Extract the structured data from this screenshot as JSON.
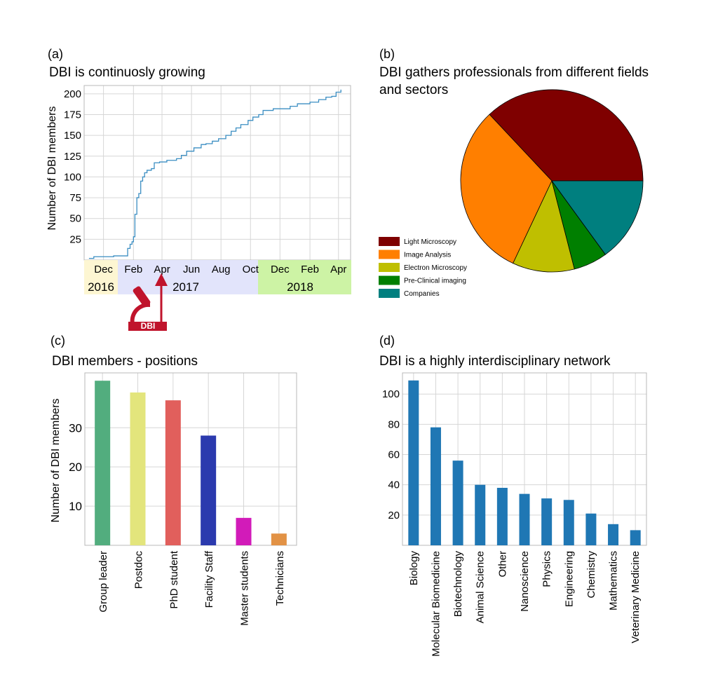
{
  "panel_a": {
    "label": "(a)",
    "title": "DBI is continuosly growing",
    "ylabel": "Number of DBI members",
    "month_ticks": [
      "Dec",
      "Feb",
      "Apr",
      "Jun",
      "Aug",
      "Oct",
      "Dec",
      "Feb",
      "Apr"
    ],
    "years": [
      "2016",
      "2017",
      "2018"
    ],
    "year_colors": [
      "#fdf6d2",
      "#e2e4fb",
      "#cdf3a5"
    ],
    "logo_text": "DBI",
    "logo_color": "#c0142c",
    "line_color": "#3b8ec2"
  },
  "panel_b": {
    "label": "(b)",
    "title_lines": [
      "DBI gathers professionals from different fields",
      "and sectors"
    ]
  },
  "panel_c": {
    "label": "(c)",
    "title": "DBI members - positions",
    "ylabel": "Number of DBI members"
  },
  "panel_d": {
    "label": "(d)",
    "title": "DBI is a highly interdisciplinary network"
  },
  "chart_data": [
    {
      "id": "a",
      "type": "line",
      "title": "DBI is continuosly growing",
      "ylabel": "Number of DBI members",
      "x_ticks": [
        "Dec",
        "Feb",
        "Apr",
        "Jun",
        "Aug",
        "Oct",
        "Dec",
        "Feb",
        "Apr"
      ],
      "x_groups": [
        "2016",
        "2017",
        "2018"
      ],
      "ylim": [
        0,
        210
      ],
      "yticks": [
        25,
        50,
        75,
        100,
        125,
        150,
        175,
        200
      ],
      "grid": true,
      "x": [
        "2016-11-15",
        "2016-11-25",
        "2017-01-05",
        "2017-01-30",
        "2017-02-03",
        "2017-02-08",
        "2017-02-12",
        "2017-02-15",
        "2017-02-18",
        "2017-02-22",
        "2017-02-26",
        "2017-03-02",
        "2017-03-06",
        "2017-03-10",
        "2017-03-15",
        "2017-03-20",
        "2017-03-24",
        "2017-03-30",
        "2017-04-10",
        "2017-04-25",
        "2017-05-15",
        "2017-05-25",
        "2017-06-05",
        "2017-06-20",
        "2017-07-05",
        "2017-07-15",
        "2017-07-28",
        "2017-08-10",
        "2017-08-25",
        "2017-09-05",
        "2017-09-15",
        "2017-09-25",
        "2017-10-10",
        "2017-10-20",
        "2017-11-01",
        "2017-11-10",
        "2017-12-01",
        "2018-01-05",
        "2018-01-20",
        "2018-02-15",
        "2018-03-05",
        "2018-03-20",
        "2018-04-01",
        "2018-04-10",
        "2018-04-20"
      ],
      "y": [
        2,
        4,
        5,
        5,
        14,
        19,
        22,
        28,
        55,
        75,
        80,
        95,
        100,
        105,
        108,
        108,
        110,
        117,
        118,
        120,
        122,
        126,
        131,
        135,
        139,
        140,
        143,
        146,
        150,
        155,
        159,
        163,
        168,
        172,
        175,
        180,
        182,
        185,
        188,
        190,
        193,
        196,
        197,
        202,
        205
      ]
    },
    {
      "id": "b",
      "type": "pie",
      "title": "DBI gathers professionals from different fields and sectors",
      "labels": [
        "Light Microscopy",
        "Image Analysis",
        "Electron Microscopy",
        "Pre-Clinical imaging",
        "Companies"
      ],
      "values": [
        37,
        31,
        11,
        6,
        15
      ],
      "colors": [
        "#7f0000",
        "#ff7f00",
        "#bfbf00",
        "#007f00",
        "#007f7f"
      ],
      "legend_position": "bottom-left"
    },
    {
      "id": "c",
      "type": "bar",
      "title": "DBI members - positions",
      "ylabel": "Number of DBI members",
      "categories": [
        "Group leader",
        "Postdoc",
        "PhD student",
        "Facility Staff",
        "Master students",
        "Technicians"
      ],
      "values": [
        42,
        39,
        37,
        28,
        7,
        3
      ],
      "colors": [
        "#52ad7e",
        "#e3e57c",
        "#e15f5c",
        "#2b3aae",
        "#d21bb9",
        "#e29245"
      ],
      "ylim": [
        0,
        44
      ],
      "yticks": [
        10,
        20,
        30
      ],
      "grid": true
    },
    {
      "id": "d",
      "type": "bar",
      "title": "DBI is a highly interdisciplinary network",
      "categories": [
        "Biology",
        "Molecular Biomedicine",
        "Biotechnology",
        "Animal Science",
        "Other",
        "Nanoscience",
        "Physics",
        "Engineering",
        "Chemistry",
        "Mathematics",
        "Veterinary Medicine"
      ],
      "values": [
        109,
        78,
        56,
        40,
        38,
        34,
        31,
        30,
        21,
        14,
        10
      ],
      "color": "#1f77b4",
      "ylim": [
        0,
        114
      ],
      "yticks": [
        20,
        40,
        60,
        80,
        100
      ],
      "grid": true
    }
  ]
}
